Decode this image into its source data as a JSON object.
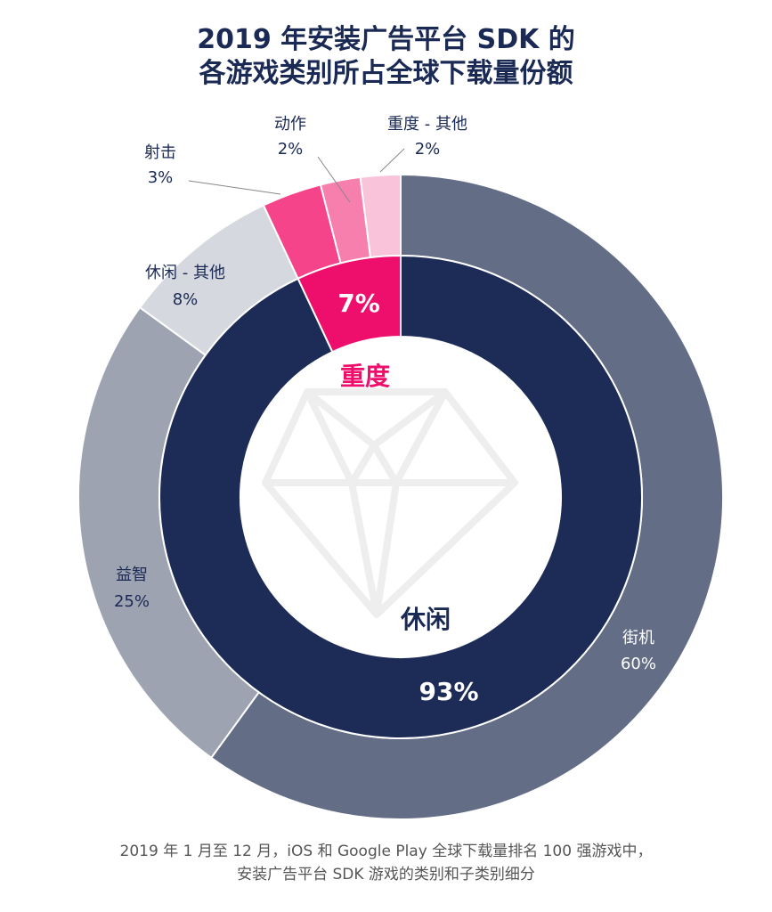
{
  "title": {
    "line1": "2019 年安装广告平台 SDK 的",
    "line2": "各游戏类别所占全球下载量份额"
  },
  "footnote": {
    "line1": "2019 年 1 月至 12 月，iOS 和 Google Play 全球下载量排名 100 强游戏中，",
    "line2": "安装广告平台 SDK 游戏的类别和子类别细分"
  },
  "colors": {
    "title": "#1b2a55",
    "casual": "#1d2b57",
    "hardcore": "#ee0f6d",
    "arcade": "#636d86",
    "puzzle": "#9da3b1",
    "casual_other": "#d5d8de",
    "shooter": "#f5448a",
    "action": "#f77fae",
    "hardcore_other": "#f9c4d9",
    "diamond": "#eeeeee"
  },
  "chart_data": {
    "type": "pie",
    "subtype": "nested-donut",
    "title": "2019 年安装广告平台 SDK 的各游戏类别所占全球下载量份额",
    "inner_ring": {
      "categories": [
        "休闲",
        "重度"
      ],
      "values": [
        93,
        7
      ],
      "labels": [
        "93%",
        "7%"
      ]
    },
    "outer_ring": {
      "categories": [
        "街机",
        "益智",
        "休闲 - 其他",
        "射击",
        "动作",
        "重度 - 其他"
      ],
      "values": [
        60,
        25,
        8,
        3,
        2,
        2
      ],
      "labels": [
        "60%",
        "25%",
        "8%",
        "3%",
        "2%",
        "2%"
      ],
      "parent": [
        "休闲",
        "休闲",
        "休闲",
        "重度",
        "重度",
        "重度"
      ]
    },
    "start_angle": "12 o'clock",
    "direction": "clockwise",
    "legend": "none (direct labels)",
    "center_icon": "diamond"
  },
  "labels": {
    "arcade": {
      "name": "街机",
      "pct": "60%"
    },
    "puzzle": {
      "name": "益智",
      "pct": "25%"
    },
    "casual_other": {
      "name": "休闲 - 其他",
      "pct": "8%"
    },
    "shooter": {
      "name": "射击",
      "pct": "3%"
    },
    "action": {
      "name": "动作",
      "pct": "2%"
    },
    "hardcore_other": {
      "name": "重度 - 其他",
      "pct": "2%"
    },
    "casual": {
      "name": "休闲",
      "pct": "93%"
    },
    "hardcore": {
      "name": "重度",
      "pct": "7%"
    }
  }
}
